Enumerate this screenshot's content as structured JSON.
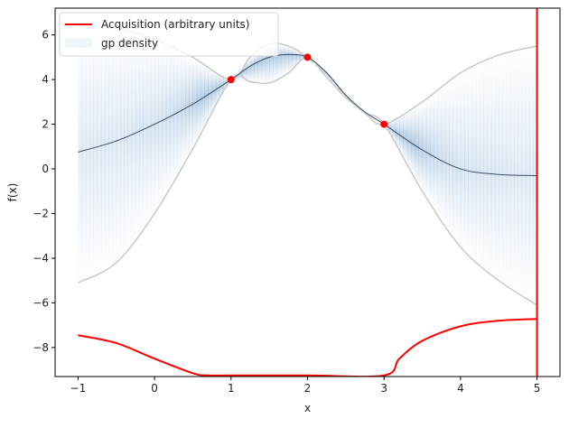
{
  "chart_data": {
    "type": "line",
    "title": "",
    "xlabel": "x",
    "ylabel": "f(x)",
    "xlim": [
      -1.3,
      5.3
    ],
    "ylim": [
      -9.3,
      7.2
    ],
    "x_ticks": [
      -1,
      0,
      1,
      2,
      3,
      4,
      5
    ],
    "y_ticks": [
      6,
      4,
      2,
      0,
      -2,
      -4,
      -6,
      -8
    ],
    "grid": false,
    "legend": {
      "placement": "top-left",
      "entries": [
        {
          "label": "Acquisition (arbitrary units)",
          "kind": "line",
          "color": "#ff0000"
        },
        {
          "label": "gp density",
          "kind": "fill",
          "color": "#9bbcdc"
        }
      ]
    },
    "observations": {
      "x": [
        1,
        2,
        3
      ],
      "y": [
        4,
        5,
        2
      ],
      "color": "#ff0000"
    },
    "series": [
      {
        "role": "gp-mean",
        "color": "#3d4f66",
        "x": [
          -1,
          -0.5,
          0,
          0.5,
          1,
          1.25,
          1.5,
          1.75,
          2,
          2.25,
          2.5,
          2.75,
          3,
          3.5,
          4,
          4.5,
          5
        ],
        "y": [
          0.75,
          1.25,
          2.0,
          2.9,
          4.0,
          4.6,
          5.0,
          5.12,
          5.0,
          4.3,
          3.3,
          2.55,
          2.0,
          0.85,
          0.0,
          -0.25,
          -0.3
        ]
      },
      {
        "role": "gp-upper",
        "color": "#c8c8c8",
        "x": [
          -1,
          -0.5,
          0,
          0.5,
          1,
          1.25,
          1.5,
          1.75,
          2,
          2.25,
          2.5,
          2.75,
          3,
          3.5,
          4,
          4.5,
          5
        ],
        "y": [
          6.4,
          6.3,
          5.8,
          5.0,
          4.0,
          5.0,
          5.6,
          5.5,
          5.0,
          4.3,
          3.3,
          2.5,
          2.0,
          3.0,
          4.3,
          5.1,
          5.5
        ]
      },
      {
        "role": "gp-lower",
        "color": "#c8c8c8",
        "x": [
          -1,
          -0.5,
          0,
          0.5,
          1,
          1.25,
          1.5,
          1.75,
          2,
          2.25,
          2.5,
          2.75,
          3,
          3.5,
          4,
          4.5,
          5
        ],
        "y": [
          -5.1,
          -4.2,
          -2.0,
          0.9,
          4.0,
          3.9,
          3.85,
          4.3,
          5.0,
          4.1,
          3.2,
          2.5,
          2.0,
          -1.0,
          -3.5,
          -5.0,
          -6.1
        ]
      },
      {
        "name": "Acquisition (arbitrary units)",
        "role": "acquisition",
        "color": "#ff0000",
        "x": [
          -1,
          -0.5,
          0,
          0.5,
          0.7,
          1,
          2,
          3,
          3.2,
          3.5,
          4,
          4.5,
          5
        ],
        "y": [
          -7.45,
          -7.8,
          -8.5,
          -9.15,
          -9.25,
          -9.25,
          -9.25,
          -9.25,
          -8.5,
          -7.7,
          -7.05,
          -6.8,
          -6.72
        ]
      }
    ],
    "vertical_line": {
      "x": 5,
      "color": "#ff0000"
    }
  }
}
